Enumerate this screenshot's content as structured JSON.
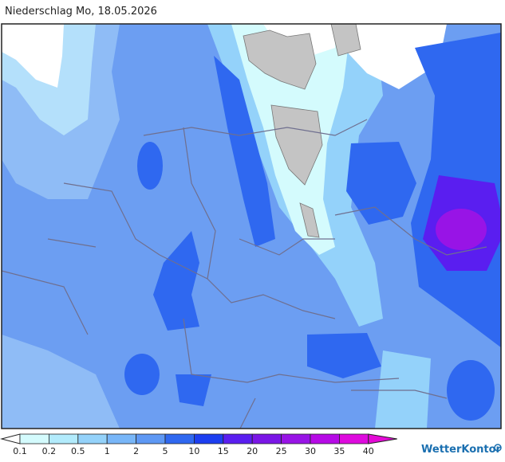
{
  "header": {
    "title": "Niederschlag Mo, 18.05.2026"
  },
  "legend": {
    "labels": [
      "0.1",
      "0.2",
      "0.5",
      "1",
      "2",
      "5",
      "10",
      "15",
      "20",
      "25",
      "30",
      "35",
      "40"
    ],
    "colors": [
      "#d4fbfd",
      "#b2ebfc",
      "#94d2fa",
      "#78b6f8",
      "#5e98f4",
      "#2f68f0",
      "#1c3ef0",
      "#5a1ef0",
      "#7a16e6",
      "#9814e6",
      "#b60ae6",
      "#de0ade"
    ],
    "low_color": "#ffffff",
    "high_color": "#e40ad6"
  },
  "brand": {
    "name": "WetterKontor"
  }
}
